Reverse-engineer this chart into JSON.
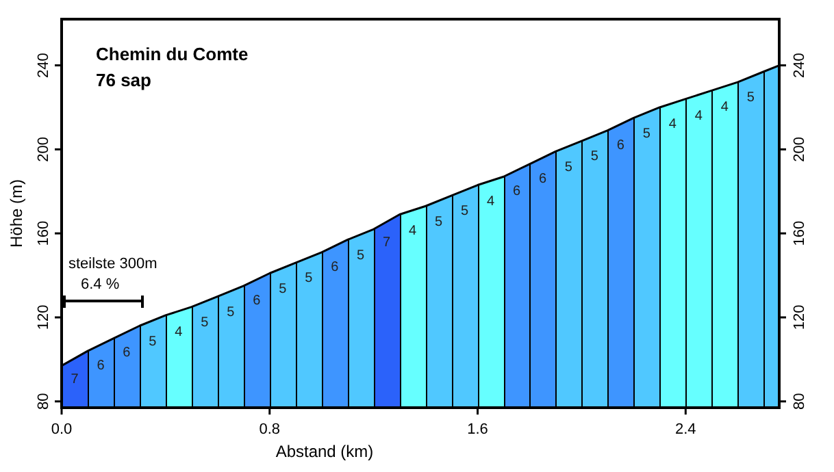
{
  "chart_data": {
    "type": "area",
    "title": "Chemin du Comte",
    "subtitle": "76 sap",
    "xlabel": "Abstand (km)",
    "ylabel": "Höhe (m)",
    "annotations": [
      "steilste 300m",
      "6.4 %",
      {
        "text": "7",
        "x": 0.05,
        "y": 100.5
      },
      {
        "text": "6",
        "x": 0.15,
        "y": 107
      },
      {
        "text": "6",
        "x": 0.25,
        "y": 113
      },
      {
        "text": "5",
        "x": 0.35,
        "y": 118.5
      },
      {
        "text": "4",
        "x": 0.45,
        "y": 123
      },
      {
        "text": "5",
        "x": 0.55,
        "y": 127.5
      },
      {
        "text": "5",
        "x": 0.65,
        "y": 132.5
      },
      {
        "text": "6",
        "x": 0.75,
        "y": 138
      },
      {
        "text": "5",
        "x": 0.85,
        "y": 143.5
      },
      {
        "text": "5",
        "x": 0.95,
        "y": 148.5
      },
      {
        "text": "6",
        "x": 1.05,
        "y": 154
      },
      {
        "text": "5",
        "x": 1.15,
        "y": 159.5
      },
      {
        "text": "7",
        "x": 1.25,
        "y": 165.5
      },
      {
        "text": "4",
        "x": 1.35,
        "y": 171
      },
      {
        "text": "5",
        "x": 1.45,
        "y": 175.5
      },
      {
        "text": "5",
        "x": 1.55,
        "y": 180.5
      },
      {
        "text": "4",
        "x": 1.65,
        "y": 185
      },
      {
        "text": "6",
        "x": 1.75,
        "y": 190
      },
      {
        "text": "6",
        "x": 1.85,
        "y": 196
      },
      {
        "text": "5",
        "x": 1.95,
        "y": 201.5
      },
      {
        "text": "5",
        "x": 2.05,
        "y": 206.5
      },
      {
        "text": "6",
        "x": 2.15,
        "y": 212
      },
      {
        "text": "5",
        "x": 2.25,
        "y": 217.5
      },
      {
        "text": "4",
        "x": 2.35,
        "y": 222
      },
      {
        "text": "4",
        "x": 2.45,
        "y": 226
      },
      {
        "text": "4",
        "x": 2.55,
        "y": 230
      },
      {
        "text": "5",
        "x": 2.65,
        "y": 234.5
      }
    ],
    "series": [
      {
        "x": [
          0,
          0.1,
          0.2,
          0.3,
          0.4,
          0.5,
          0.6,
          0.7,
          0.8,
          0.9,
          1.0,
          1.1,
          1.2,
          1.3,
          1.4,
          1.5,
          1.6,
          1.7,
          1.8,
          1.9,
          2.0,
          2.1,
          2.2,
          2.3,
          2.4,
          2.5,
          2.6,
          2.7,
          2.76
        ],
        "values": [
          97,
          104,
          110,
          116,
          121,
          125,
          130,
          135,
          141,
          146,
          151,
          157,
          162,
          169,
          173,
          178,
          183,
          187,
          193,
          199,
          204,
          209,
          215,
          220,
          224,
          228,
          232,
          237,
          240
        ],
        "colors": [
          "#2b62fa",
          "#3e95ff",
          "#3e95ff",
          "#50c8ff",
          "#66ffff",
          "#50c8ff",
          "#50c8ff",
          "#3e95ff",
          "#50c8ff",
          "#50c8ff",
          "#3e95ff",
          "#50c8ff",
          "#2b62fa",
          "#66ffff",
          "#50c8ff",
          "#50c8ff",
          "#66ffff",
          "#3e95ff",
          "#3e95ff",
          "#50c8ff",
          "#50c8ff",
          "#3e95ff",
          "#50c8ff",
          "#66ffff",
          "#66ffff",
          "#66ffff",
          "#50c8ff",
          "#50c8ff",
          "#50c8ff"
        ]
      }
    ],
    "xlim": [
      0,
      2.76
    ],
    "xticks": [
      {
        "value": 0,
        "label": "0.0"
      },
      {
        "value": 0.8,
        "label": "0.8"
      },
      {
        "value": 1.6,
        "label": "1.6"
      },
      {
        "value": 2.4,
        "label": "2.4"
      }
    ],
    "ylim": [
      77,
      262
    ],
    "yticks": [
      80,
      120,
      160,
      200,
      240
    ],
    "y2lim": [
      77,
      262
    ],
    "y2ticks": [
      80,
      120,
      160,
      200,
      240
    ],
    "grid": false
  }
}
